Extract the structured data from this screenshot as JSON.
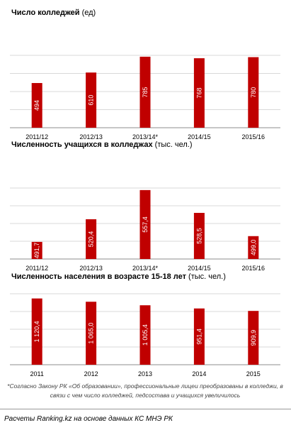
{
  "charts": [
    {
      "title": "Число колледжей",
      "unit": "(ед)",
      "chart_data": {
        "type": "bar",
        "categories": [
          "2011/12",
          "2012/13",
          "2013/14*",
          "2014/15",
          "2015/16"
        ],
        "values": [
          494,
          610,
          785,
          768,
          780
        ],
        "labels": [
          "494",
          "610",
          "785",
          "768",
          "780"
        ],
        "ylim": [
          0,
          800
        ],
        "grid": true,
        "color": "#C00000"
      }
    },
    {
      "title": "Численность  учащихся  в колледжах",
      "unit": "(тыс. чел.)",
      "chart_data": {
        "type": "bar",
        "categories": [
          "2011/12",
          "2012/13",
          "2013/14*",
          "2014/15",
          "2015/16"
        ],
        "values": [
          491.7,
          520.4,
          557.4,
          528.5,
          499.0
        ],
        "labels": [
          "491,7",
          "520,4",
          "557,4",
          "528,5",
          "499,0"
        ],
        "ylim": [
          470,
          560
        ],
        "grid": true,
        "color": "#C00000"
      }
    },
    {
      "title": "Численность  населения  в возрасте  15-18 лет",
      "unit": "(тыс. чел.)",
      "chart_data": {
        "type": "bar",
        "categories": [
          "2011",
          "2012",
          "2013",
          "2014",
          "2015"
        ],
        "values": [
          1120.4,
          1065.0,
          1005.4,
          951.4,
          909.9
        ],
        "labels": [
          "1 120,4",
          "1 065,0",
          "1 005,4",
          "951,4",
          "909,9"
        ],
        "ylim": [
          0,
          1200
        ],
        "grid": true,
        "color": "#C00000"
      }
    }
  ],
  "footnote": "*Согласно Закону РК «Об образовании», профессиональные лицеи преобразованы в колледжи, в связи с чем число колледжей, педсостава и учащихся увеличилось",
  "source": "Расчеты Ranking.kz на основе данных КС МНЭ РК"
}
